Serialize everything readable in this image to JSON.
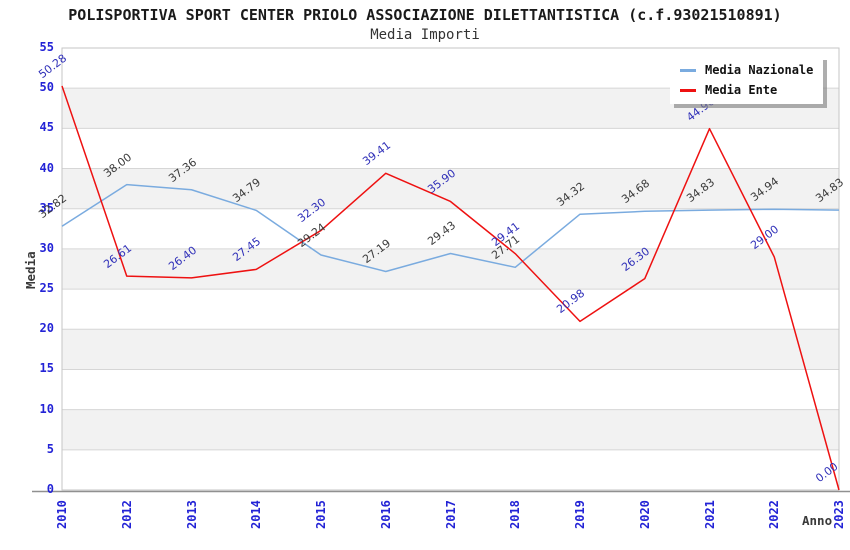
{
  "chart_data": {
    "type": "line",
    "title": "POLISPORTIVA SPORT CENTER PRIOLO ASSOCIAZIONE DILETTANTISTICA (c.f.93021510891)",
    "subtitle": "Media Importi",
    "xlabel": "Anno",
    "ylabel": "Media",
    "x": [
      "2010",
      "2012",
      "2013",
      "2014",
      "2015",
      "2016",
      "2017",
      "2018",
      "2019",
      "2020",
      "2021",
      "2022",
      "2023"
    ],
    "series": [
      {
        "name": "Media Nazionale",
        "color": "#7aabdf",
        "label_color": "#3a3a3a",
        "values": [
          32.82,
          38.0,
          37.36,
          34.79,
          29.24,
          27.19,
          29.43,
          27.71,
          34.32,
          34.68,
          34.83,
          34.94,
          34.83
        ]
      },
      {
        "name": "Media Ente",
        "color": "#ee1111",
        "label_color": "#2e2eb8",
        "values": [
          50.28,
          26.61,
          26.4,
          27.45,
          32.3,
          39.41,
          35.9,
          29.41,
          20.98,
          26.3,
          44.96,
          29.0,
          0.0
        ]
      }
    ],
    "ylim": [
      0,
      55
    ],
    "ytick_step": 5,
    "grid": true,
    "band_colors": [
      "#ffffff",
      "#f2f2f2"
    ],
    "gridline_color": "#d6d6d6",
    "border_color": "#c6c6c6",
    "axis_line_color": "#909090",
    "tick_label_color": "#2323d6",
    "legend_position": "top-right",
    "value_label_decimals": 2
  }
}
